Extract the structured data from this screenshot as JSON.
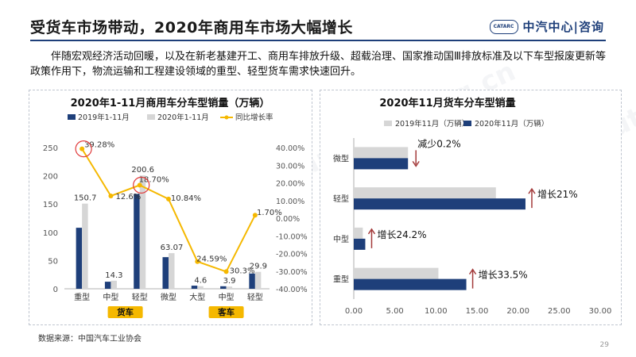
{
  "title": "受货车市场带动，2020年商用车市场大幅增长",
  "logo": {
    "badge": "CATARC",
    "text": "中汽中心|咨询"
  },
  "paragraph": "伴随宏观经济活动回暖，以及在新老基建开工、商用车排放升级、超载治理、国家推动国Ⅲ排放标准及以下车型报废更新等政策作用下，物流运输和工程建设领域的重型、轻型货车需求快速回升。",
  "source": "数据来源：中国汽车工业协会",
  "page_number": "29",
  "colors": {
    "navy": "#1e3f7a",
    "gray": "#d6d6d6",
    "gold": "#f5b800",
    "red_circle": "#e03a3a",
    "arrow_red": "#a33a3a"
  },
  "chart_data": [
    {
      "type": "bar",
      "title": "2020年1-11月商用车分车型销量（万辆）",
      "categories": [
        "重型",
        "中型",
        "轻型",
        "微型",
        "大型",
        "中型",
        "轻型"
      ],
      "groups": [
        {
          "label": "货车",
          "categories": [
            "重型",
            "中型",
            "轻型",
            "微型"
          ]
        },
        {
          "label": "客车",
          "categories": [
            "大型",
            "中型",
            "轻型"
          ]
        }
      ],
      "series": [
        {
          "name": "2019年1-11月",
          "color": "#1e3f7a",
          "values": [
            108,
            12.5,
            168,
            56,
            5.5,
            4.5,
            27
          ]
        },
        {
          "name": "2020年1-11月",
          "color": "#d6d6d6",
          "values": [
            150.7,
            14.3,
            200.6,
            63.07,
            4.6,
            3.9,
            29.9
          ]
        },
        {
          "name": "同比增长率",
          "color": "#f5b800",
          "axis": "right",
          "type": "line",
          "values": [
            39.28,
            12.6,
            18.7,
            10.84,
            -24.59,
            -30.3,
            1.7
          ]
        }
      ],
      "data_labels": [
        "150.7",
        "14.3",
        "200.6",
        "63.07",
        "4.6",
        "3.9",
        "29.9"
      ],
      "pct_labels": [
        "39.28%",
        "12.6%",
        "18.70%",
        "10.84%",
        "24.59%",
        "30.3%",
        "1.70%"
      ],
      "y_left": {
        "ylim": [
          0,
          250
        ],
        "ticks": [
          "0",
          "50",
          "100",
          "150",
          "200",
          "250"
        ]
      },
      "y_right": {
        "ylim": [
          -40,
          40
        ],
        "ticks": [
          "-40.00%",
          "-30.00%",
          "-20.00%",
          "-10.00%",
          "0.00%",
          "10.00%",
          "20.00%",
          "30.00%",
          "40.00%"
        ]
      },
      "highlighted": [
        "重型",
        "轻型"
      ]
    },
    {
      "type": "bar",
      "orientation": "horizontal",
      "title": "2020年11月货车分车型销量",
      "categories": [
        "微型",
        "轻型",
        "中型",
        "重型"
      ],
      "series": [
        {
          "name": "2019年11月（万辆）",
          "color": "#d6d6d6",
          "values": [
            6.6,
            17.3,
            1.1,
            10.3
          ]
        },
        {
          "name": "2020年11月（万辆）",
          "color": "#1e3f7a",
          "values": [
            6.6,
            20.9,
            1.4,
            13.7
          ]
        }
      ],
      "annotations": [
        {
          "category": "微型",
          "text": "减少0.2%",
          "direction": "down"
        },
        {
          "category": "轻型",
          "text": "增长21%",
          "direction": "up"
        },
        {
          "category": "中型",
          "text": "增长24.2%",
          "direction": "up"
        },
        {
          "category": "重型",
          "text": "增长33.5%",
          "direction": "up"
        }
      ],
      "x_ticks": [
        "0.00",
        "5.00",
        "10.00",
        "15.00",
        "20.00",
        "25.00",
        "30.00"
      ],
      "xlim": [
        0,
        30
      ]
    }
  ]
}
